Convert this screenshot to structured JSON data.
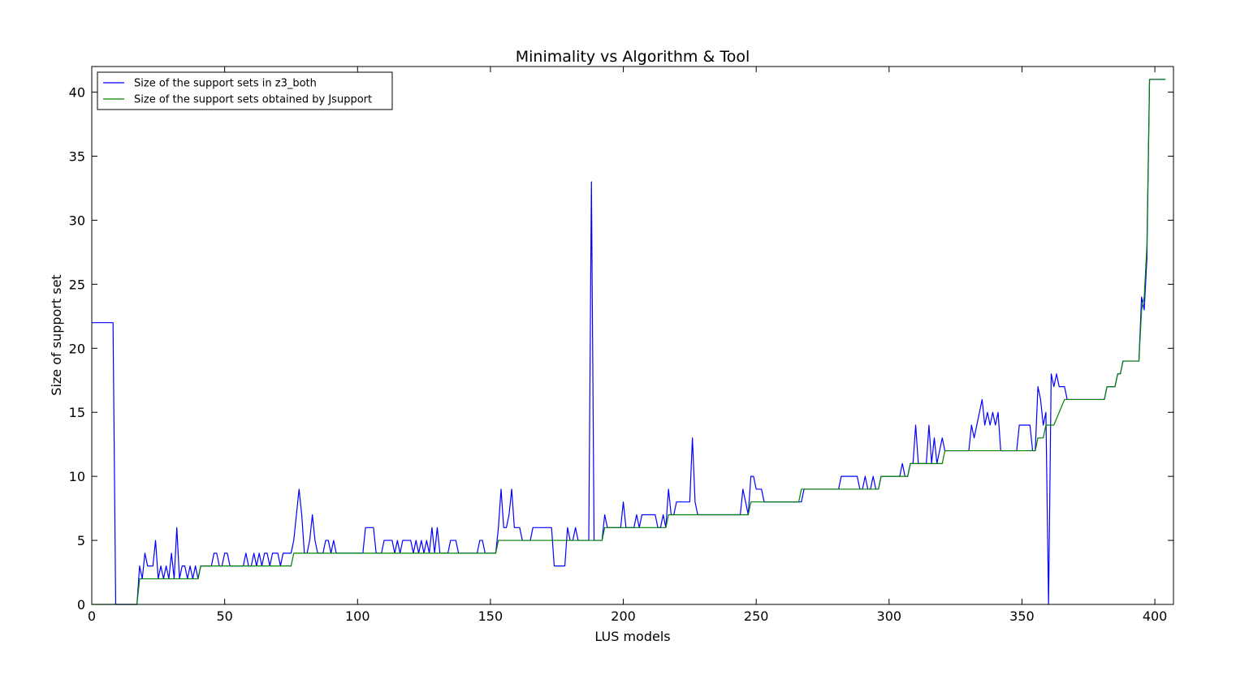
{
  "chart_data": {
    "type": "line",
    "title": "Minimality vs Algorithm & Tool",
    "xlabel": "LUS models",
    "ylabel": "Size of support set",
    "xlim": [
      0,
      407
    ],
    "ylim": [
      0,
      42
    ],
    "xticks": [
      0,
      50,
      100,
      150,
      200,
      250,
      300,
      350,
      400
    ],
    "yticks": [
      0,
      5,
      10,
      15,
      20,
      25,
      30,
      35,
      40
    ],
    "grid": false,
    "legend_position": "top-left",
    "series": [
      {
        "name": "Size of the support sets in z3_both",
        "color": "#0000ff",
        "points": [
          [
            0,
            22
          ],
          [
            8,
            22
          ],
          [
            9,
            0
          ],
          [
            17,
            0
          ],
          [
            18,
            3
          ],
          [
            19,
            2
          ],
          [
            20,
            4
          ],
          [
            21,
            3
          ],
          [
            22,
            3
          ],
          [
            23,
            3
          ],
          [
            24,
            5
          ],
          [
            25,
            2
          ],
          [
            26,
            3
          ],
          [
            27,
            2
          ],
          [
            28,
            3
          ],
          [
            29,
            2
          ],
          [
            30,
            4
          ],
          [
            31,
            2
          ],
          [
            32,
            6
          ],
          [
            33,
            2
          ],
          [
            34,
            3
          ],
          [
            35,
            3
          ],
          [
            36,
            2
          ],
          [
            37,
            3
          ],
          [
            38,
            2
          ],
          [
            39,
            3
          ],
          [
            40,
            2
          ],
          [
            41,
            3
          ],
          [
            45,
            3
          ],
          [
            46,
            4
          ],
          [
            47,
            4
          ],
          [
            48,
            3
          ],
          [
            49,
            3
          ],
          [
            50,
            4
          ],
          [
            51,
            4
          ],
          [
            52,
            3
          ],
          [
            57,
            3
          ],
          [
            58,
            4
          ],
          [
            59,
            3
          ],
          [
            60,
            3
          ],
          [
            61,
            4
          ],
          [
            62,
            3
          ],
          [
            63,
            4
          ],
          [
            64,
            3
          ],
          [
            65,
            4
          ],
          [
            66,
            4
          ],
          [
            67,
            3
          ],
          [
            68,
            4
          ],
          [
            70,
            4
          ],
          [
            71,
            3
          ],
          [
            72,
            4
          ],
          [
            75,
            4
          ],
          [
            76,
            5
          ],
          [
            77,
            7
          ],
          [
            78,
            9
          ],
          [
            79,
            7
          ],
          [
            80,
            4
          ],
          [
            81,
            4
          ],
          [
            82,
            5
          ],
          [
            83,
            7
          ],
          [
            84,
            5
          ],
          [
            85,
            4
          ],
          [
            87,
            4
          ],
          [
            88,
            5
          ],
          [
            89,
            5
          ],
          [
            90,
            4
          ],
          [
            91,
            5
          ],
          [
            92,
            4
          ],
          [
            102,
            4
          ],
          [
            103,
            6
          ],
          [
            106,
            6
          ],
          [
            107,
            4
          ],
          [
            109,
            4
          ],
          [
            110,
            5
          ],
          [
            113,
            5
          ],
          [
            114,
            4
          ],
          [
            115,
            5
          ],
          [
            116,
            4
          ],
          [
            117,
            5
          ],
          [
            120,
            5
          ],
          [
            121,
            4
          ],
          [
            122,
            5
          ],
          [
            123,
            4
          ],
          [
            124,
            5
          ],
          [
            125,
            4
          ],
          [
            126,
            5
          ],
          [
            127,
            4
          ],
          [
            128,
            6
          ],
          [
            129,
            4
          ],
          [
            130,
            6
          ],
          [
            131,
            4
          ],
          [
            134,
            4
          ],
          [
            135,
            5
          ],
          [
            137,
            5
          ],
          [
            138,
            4
          ],
          [
            145,
            4
          ],
          [
            146,
            5
          ],
          [
            147,
            5
          ],
          [
            148,
            4
          ],
          [
            152,
            4
          ],
          [
            153,
            6
          ],
          [
            154,
            9
          ],
          [
            155,
            6
          ],
          [
            156,
            6
          ],
          [
            157,
            7
          ],
          [
            158,
            9
          ],
          [
            159,
            6
          ],
          [
            161,
            6
          ],
          [
            162,
            5
          ],
          [
            165,
            5
          ],
          [
            166,
            6
          ],
          [
            173,
            6
          ],
          [
            174,
            3
          ],
          [
            178,
            3
          ],
          [
            179,
            6
          ],
          [
            180,
            5
          ],
          [
            181,
            5
          ],
          [
            182,
            6
          ],
          [
            183,
            5
          ],
          [
            187,
            5
          ],
          [
            188,
            33
          ],
          [
            189,
            5
          ],
          [
            192,
            5
          ],
          [
            193,
            7
          ],
          [
            194,
            6
          ],
          [
            199,
            6
          ],
          [
            200,
            8
          ],
          [
            201,
            6
          ],
          [
            204,
            6
          ],
          [
            205,
            7
          ],
          [
            206,
            6
          ],
          [
            207,
            7
          ],
          [
            212,
            7
          ],
          [
            213,
            6
          ],
          [
            214,
            6
          ],
          [
            215,
            7
          ],
          [
            216,
            6
          ],
          [
            217,
            9
          ],
          [
            218,
            7
          ],
          [
            219,
            7
          ],
          [
            220,
            8
          ],
          [
            225,
            8
          ],
          [
            226,
            13
          ],
          [
            227,
            8
          ],
          [
            228,
            7
          ],
          [
            244,
            7
          ],
          [
            245,
            9
          ],
          [
            246,
            8
          ],
          [
            247,
            7
          ],
          [
            248,
            10
          ],
          [
            249,
            10
          ],
          [
            250,
            9
          ],
          [
            252,
            9
          ],
          [
            253,
            8
          ],
          [
            267,
            8
          ],
          [
            268,
            9
          ],
          [
            281,
            9
          ],
          [
            282,
            10
          ],
          [
            288,
            10
          ],
          [
            289,
            9
          ],
          [
            290,
            9
          ],
          [
            291,
            10
          ],
          [
            292,
            9
          ],
          [
            293,
            9
          ],
          [
            294,
            10
          ],
          [
            295,
            9
          ],
          [
            296,
            9
          ],
          [
            297,
            10
          ],
          [
            304,
            10
          ],
          [
            305,
            11
          ],
          [
            306,
            10
          ],
          [
            307,
            10
          ],
          [
            308,
            11
          ],
          [
            309,
            11
          ],
          [
            310,
            14
          ],
          [
            311,
            11
          ],
          [
            314,
            11
          ],
          [
            315,
            14
          ],
          [
            316,
            11
          ],
          [
            317,
            13
          ],
          [
            318,
            11
          ],
          [
            319,
            12
          ],
          [
            320,
            13
          ],
          [
            321,
            12
          ],
          [
            330,
            12
          ],
          [
            331,
            14
          ],
          [
            332,
            13
          ],
          [
            333,
            14
          ],
          [
            334,
            15
          ],
          [
            335,
            16
          ],
          [
            336,
            14
          ],
          [
            337,
            15
          ],
          [
            338,
            14
          ],
          [
            339,
            15
          ],
          [
            340,
            14
          ],
          [
            341,
            15
          ],
          [
            342,
            12
          ],
          [
            348,
            12
          ],
          [
            349,
            14
          ],
          [
            353,
            14
          ],
          [
            354,
            12
          ],
          [
            355,
            12
          ],
          [
            356,
            17
          ],
          [
            357,
            16
          ],
          [
            358,
            14
          ],
          [
            359,
            15
          ],
          [
            360,
            0
          ],
          [
            361,
            18
          ],
          [
            362,
            17
          ],
          [
            363,
            18
          ],
          [
            364,
            17
          ],
          [
            366,
            17
          ],
          [
            367,
            16
          ],
          [
            381,
            16
          ],
          [
            382,
            17
          ],
          [
            385,
            17
          ],
          [
            386,
            18
          ],
          [
            387,
            18
          ],
          [
            388,
            19
          ],
          [
            394,
            19
          ],
          [
            395,
            24
          ],
          [
            396,
            23
          ],
          [
            397,
            27
          ],
          [
            398,
            41
          ],
          [
            404,
            41
          ]
        ]
      },
      {
        "name": "Size of the support sets obtained by Jsupport",
        "color": "#008000",
        "points": [
          [
            0,
            0
          ],
          [
            17,
            0
          ],
          [
            18,
            2
          ],
          [
            40,
            2
          ],
          [
            41,
            3
          ],
          [
            75,
            3
          ],
          [
            76,
            4
          ],
          [
            152,
            4
          ],
          [
            153,
            5
          ],
          [
            187,
            5
          ],
          [
            188,
            5
          ],
          [
            192,
            5
          ],
          [
            193,
            6
          ],
          [
            216,
            6
          ],
          [
            217,
            7
          ],
          [
            247,
            7
          ],
          [
            248,
            8
          ],
          [
            266,
            8
          ],
          [
            267,
            9
          ],
          [
            296,
            9
          ],
          [
            297,
            10
          ],
          [
            307,
            10
          ],
          [
            308,
            11
          ],
          [
            320,
            11
          ],
          [
            321,
            12
          ],
          [
            355,
            12
          ],
          [
            356,
            13
          ],
          [
            358,
            13
          ],
          [
            359,
            14
          ],
          [
            362,
            14
          ],
          [
            366,
            16
          ],
          [
            381,
            16
          ],
          [
            382,
            17
          ],
          [
            385,
            17
          ],
          [
            386,
            18
          ],
          [
            387,
            18
          ],
          [
            388,
            19
          ],
          [
            394,
            19
          ],
          [
            395,
            23
          ],
          [
            396,
            24
          ],
          [
            397,
            28
          ],
          [
            398,
            41
          ],
          [
            404,
            41
          ]
        ]
      }
    ]
  }
}
